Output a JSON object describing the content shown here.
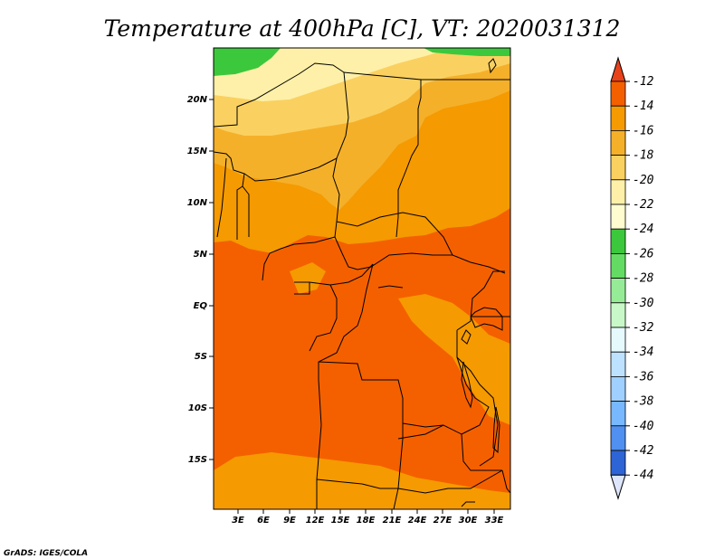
{
  "title": "Temperature at 400hPa [C], VT: 2020031312",
  "lat_labels": [
    "20N",
    "15N",
    "10N",
    "5N",
    "EQ",
    "5S",
    "10S",
    "15S"
  ],
  "lon_labels": [
    "3E",
    "6E",
    "9E",
    "12E",
    "15E",
    "18E",
    "21E",
    "24E",
    "27E",
    "30E",
    "33E"
  ],
  "colorbar": {
    "labels": [
      "-12",
      "-14",
      "-16",
      "-18",
      "-20",
      "-22",
      "-24",
      "-26",
      "-28",
      "-30",
      "-32",
      "-34",
      "-36",
      "-38",
      "-40",
      "-42",
      "-44"
    ],
    "top_color": "#e8421a",
    "colors": [
      "#f46000",
      "#f59a00",
      "#f5b02a",
      "#fad160",
      "#fef0a8",
      "#fffdd0",
      "#3cc83c",
      "#64dc64",
      "#96ec96",
      "#c8f8c8",
      "#e6fafd",
      "#bde2ff",
      "#a0d0ff",
      "#78b8ff",
      "#5090f0",
      "#2d64d6",
      "#1c46b4",
      "#0a1a6e"
    ],
    "bottom_color": "#dde6fa"
  },
  "palette": {
    "t12": "#f46000",
    "t14": "#f59a00",
    "t16": "#f5b02a",
    "t18": "#fad160",
    "t20": "#fef0a8",
    "t24": "#3cc83c"
  },
  "credit": "GrADS: IGES/COLA"
}
